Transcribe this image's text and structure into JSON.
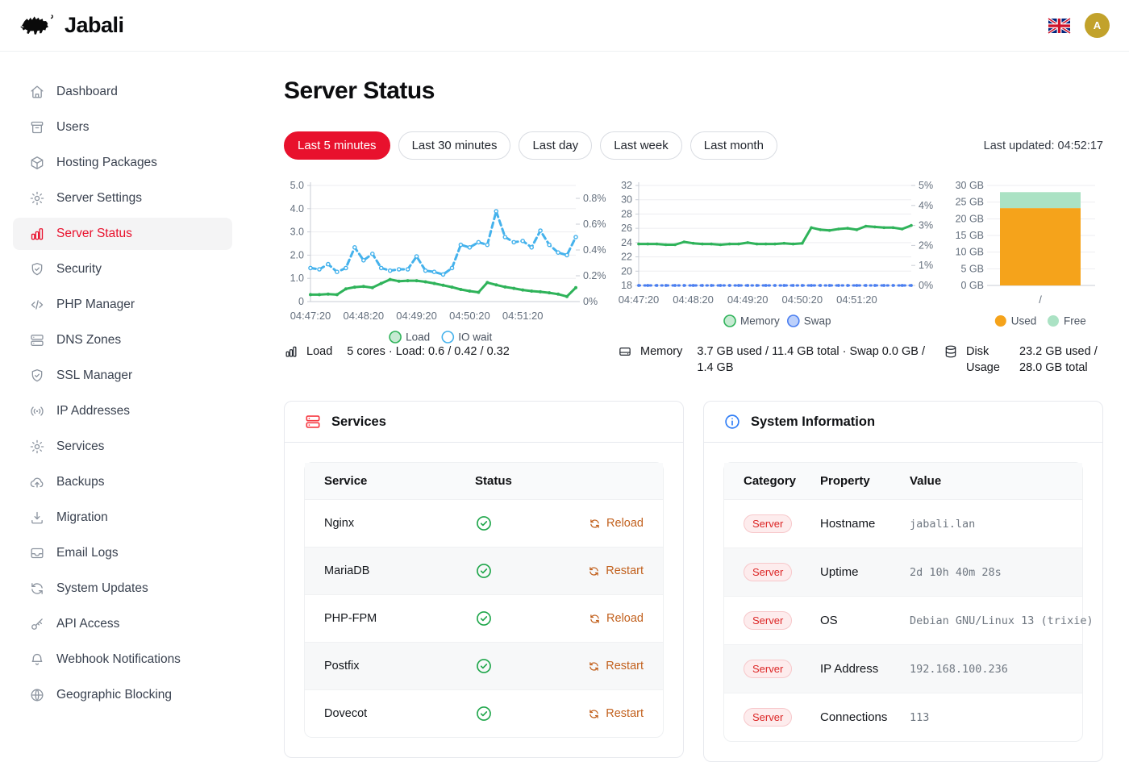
{
  "topbar": {
    "brand": "Jabali",
    "avatar_initial": "A",
    "language": "en-GB"
  },
  "sidebar": {
    "items": [
      {
        "label": "Dashboard",
        "icon": "home",
        "active": false
      },
      {
        "label": "Users",
        "icon": "archive",
        "active": false
      },
      {
        "label": "Hosting Packages",
        "icon": "cube",
        "active": false
      },
      {
        "label": "Server Settings",
        "icon": "gear",
        "active": false
      },
      {
        "label": "Server Status",
        "icon": "bars",
        "active": true
      },
      {
        "label": "Security",
        "icon": "shield",
        "active": false
      },
      {
        "label": "PHP Manager",
        "icon": "code",
        "active": false
      },
      {
        "label": "DNS Zones",
        "icon": "stack",
        "active": false
      },
      {
        "label": "SSL Manager",
        "icon": "shield",
        "active": false
      },
      {
        "label": "IP Addresses",
        "icon": "signal",
        "active": false
      },
      {
        "label": "Services",
        "icon": "gear",
        "active": false
      },
      {
        "label": "Backups",
        "icon": "cloudup",
        "active": false
      },
      {
        "label": "Migration",
        "icon": "download",
        "active": false
      },
      {
        "label": "Email Logs",
        "icon": "inbox",
        "active": false
      },
      {
        "label": "System Updates",
        "icon": "refresh",
        "active": false
      },
      {
        "label": "API Access",
        "icon": "key",
        "active": false
      },
      {
        "label": "Webhook Notifications",
        "icon": "bell",
        "active": false
      },
      {
        "label": "Geographic Blocking",
        "icon": "globe",
        "active": false
      }
    ]
  },
  "page": {
    "title": "Server Status",
    "last_updated": "Last updated: 04:52:17"
  },
  "time_filters": [
    {
      "label": "Last 5 minutes",
      "active": true
    },
    {
      "label": "Last 30 minutes",
      "active": false
    },
    {
      "label": "Last day",
      "active": false
    },
    {
      "label": "Last week",
      "active": false
    },
    {
      "label": "Last month",
      "active": false
    }
  ],
  "chart_data": [
    {
      "type": "line",
      "name": "load",
      "x_labels": [
        "04:47:20",
        "04:48:20",
        "04:49:20",
        "04:50:20",
        "04:51:20"
      ],
      "x_tick_idx": [
        0,
        6,
        12,
        18,
        24
      ],
      "left_axis": {
        "min": 0,
        "max": 5,
        "tick_values": [
          0,
          1,
          2,
          3,
          4,
          5
        ],
        "tick_labels": [
          "0",
          "1.0",
          "2.0",
          "3.0",
          "4.0",
          "5.0"
        ]
      },
      "right_axis": {
        "min": 0,
        "max": 0.9,
        "tick_values": [
          0,
          0.2,
          0.4,
          0.6,
          0.8
        ],
        "tick_labels": [
          "0%",
          "0.2%",
          "0.4%",
          "0.6%",
          "0.8%"
        ]
      },
      "series": [
        {
          "name": "Load",
          "axis": "left",
          "color": "#2fb35a",
          "marker_r": 2,
          "marker_fill": "#2fb35a",
          "values": [
            0.3,
            0.3,
            0.32,
            0.3,
            0.55,
            0.62,
            0.65,
            0.6,
            0.78,
            0.95,
            0.88,
            0.9,
            0.9,
            0.85,
            0.78,
            0.7,
            0.62,
            0.52,
            0.45,
            0.4,
            0.82,
            0.72,
            0.63,
            0.57,
            0.5,
            0.45,
            0.42,
            0.38,
            0.32,
            0.22,
            0.6
          ]
        },
        {
          "name": "IO wait",
          "axis": "right",
          "color": "#45b2ec",
          "dash": "6.5 4.5",
          "marker_r": 2.1,
          "marker_fill": "#ffffff",
          "marker_stroke": "#45b2ec",
          "values": [
            0.26,
            0.25,
            0.29,
            0.23,
            0.26,
            0.42,
            0.32,
            0.37,
            0.26,
            0.24,
            0.25,
            0.25,
            0.35,
            0.24,
            0.23,
            0.21,
            0.26,
            0.44,
            0.42,
            0.46,
            0.44,
            0.7,
            0.5,
            0.46,
            0.47,
            0.42,
            0.55,
            0.44,
            0.38,
            0.36,
            0.5
          ]
        }
      ],
      "legend": [
        {
          "label": "Load",
          "fill": "#c6ead2",
          "stroke": "#2fb35a"
        },
        {
          "label": "IO wait",
          "fill": "#ffffff",
          "stroke": "#45b2ec"
        }
      ]
    },
    {
      "type": "line",
      "name": "memory",
      "x_labels": [
        "04:47:20",
        "04:48:20",
        "04:49:20",
        "04:50:20",
        "04:51:20"
      ],
      "x_tick_idx": [
        0,
        6,
        12,
        18,
        24
      ],
      "left_axis": {
        "min": 18,
        "max": 32,
        "tick_values": [
          18,
          20,
          22,
          24,
          26,
          28,
          30,
          32
        ],
        "tick_labels": [
          "18",
          "20",
          "22",
          "24",
          "26",
          "28",
          "30",
          "32"
        ]
      },
      "right_axis": {
        "min": 0,
        "max": 5,
        "tick_values": [
          0,
          1,
          2,
          3,
          4,
          5
        ],
        "tick_labels": [
          "0%",
          "1%",
          "2%",
          "3%",
          "4%",
          "5%"
        ]
      },
      "series": [
        {
          "name": "Memory",
          "axis": "left",
          "color": "#2fb35a",
          "marker_r": 1.8,
          "marker_fill": "#2fb35a",
          "values": [
            23.8,
            23.8,
            23.8,
            23.7,
            23.7,
            24.1,
            23.9,
            23.8,
            23.8,
            23.7,
            23.8,
            23.8,
            24.0,
            23.8,
            23.8,
            23.8,
            23.9,
            23.8,
            23.9,
            26.1,
            25.8,
            25.7,
            25.9,
            26.0,
            25.8,
            26.3,
            26.2,
            26.1,
            26.1,
            25.9,
            26.4
          ]
        },
        {
          "name": "Swap",
          "axis": "right",
          "color": "#4a7ef0",
          "dash": "1.5 5.5",
          "marker_r": 1.9,
          "marker_fill": "#4a7ef0",
          "values": [
            0,
            0,
            0,
            0,
            0,
            0,
            0,
            0,
            0,
            0,
            0,
            0,
            0,
            0,
            0,
            0,
            0,
            0,
            0,
            0,
            0,
            0,
            0,
            0,
            0,
            0,
            0,
            0,
            0,
            0,
            0
          ]
        }
      ],
      "legend": [
        {
          "label": "Memory",
          "fill": "#c6ead2",
          "stroke": "#2fb35a"
        },
        {
          "label": "Swap",
          "fill": "#bcd0fb",
          "stroke": "#4a7ef0"
        }
      ]
    },
    {
      "type": "stacked-bar",
      "name": "disk",
      "category": "/",
      "y_axis": {
        "min": 0,
        "max": 30,
        "tick_values": [
          0,
          5,
          10,
          15,
          20,
          25,
          30
        ],
        "tick_labels": [
          "0 GB",
          "5 GB",
          "10 GB",
          "15 GB",
          "20 GB",
          "25 GB",
          "30 GB"
        ]
      },
      "segments": [
        {
          "label": "Used",
          "color": "#f5a31b",
          "value": 23.2
        },
        {
          "label": "Free",
          "color": "#abe2c4",
          "value": 4.8
        }
      ],
      "legend": [
        {
          "label": "Used",
          "fill": "#f5a31b"
        },
        {
          "label": "Free",
          "fill": "#abe2c4"
        }
      ]
    }
  ],
  "stats": [
    {
      "icon": "bars",
      "label": "Load",
      "value": "5 cores · Load: 0.6 / 0.42 / 0.32"
    },
    {
      "icon": "drive",
      "label": "Memory",
      "value": "3.7 GB used / 11.4 GB total · Swap 0.0 GB / 1.4 GB"
    },
    {
      "icon": "database",
      "label": "Disk Usage",
      "value": "23.2 GB used / 28.0 GB total"
    }
  ],
  "services": {
    "title": "Services",
    "columns": [
      "Service",
      "Status"
    ],
    "rows": [
      {
        "name": "Nginx",
        "status": "ok",
        "action": "Reload"
      },
      {
        "name": "MariaDB",
        "status": "ok",
        "action": "Restart"
      },
      {
        "name": "PHP-FPM",
        "status": "ok",
        "action": "Reload"
      },
      {
        "name": "Postfix",
        "status": "ok",
        "action": "Restart"
      },
      {
        "name": "Dovecot",
        "status": "ok",
        "action": "Restart"
      }
    ]
  },
  "system_info": {
    "title": "System Information",
    "columns": [
      "Category",
      "Property",
      "Value"
    ],
    "rows": [
      {
        "category": "Server",
        "property": "Hostname",
        "value": "jabali.lan"
      },
      {
        "category": "Server",
        "property": "Uptime",
        "value": "2d 10h 40m 28s"
      },
      {
        "category": "Server",
        "property": "OS",
        "value": "Debian GNU/Linux 13 (trixie)"
      },
      {
        "category": "Server",
        "property": "IP Address",
        "value": "192.168.100.236"
      },
      {
        "category": "Server",
        "property": "Connections",
        "value": "113"
      }
    ]
  },
  "colors": {
    "accent_red": "#e8112d",
    "check_green": "#1ea64a",
    "action_orange": "#c2611e",
    "load_green": "#2fb35a",
    "iowait_blue": "#45b2ec",
    "swap_blue": "#4a7ef0",
    "disk_used_orange": "#f5a31b",
    "disk_free_green": "#abe2c4",
    "avatar_gold": "#c2a22b"
  }
}
